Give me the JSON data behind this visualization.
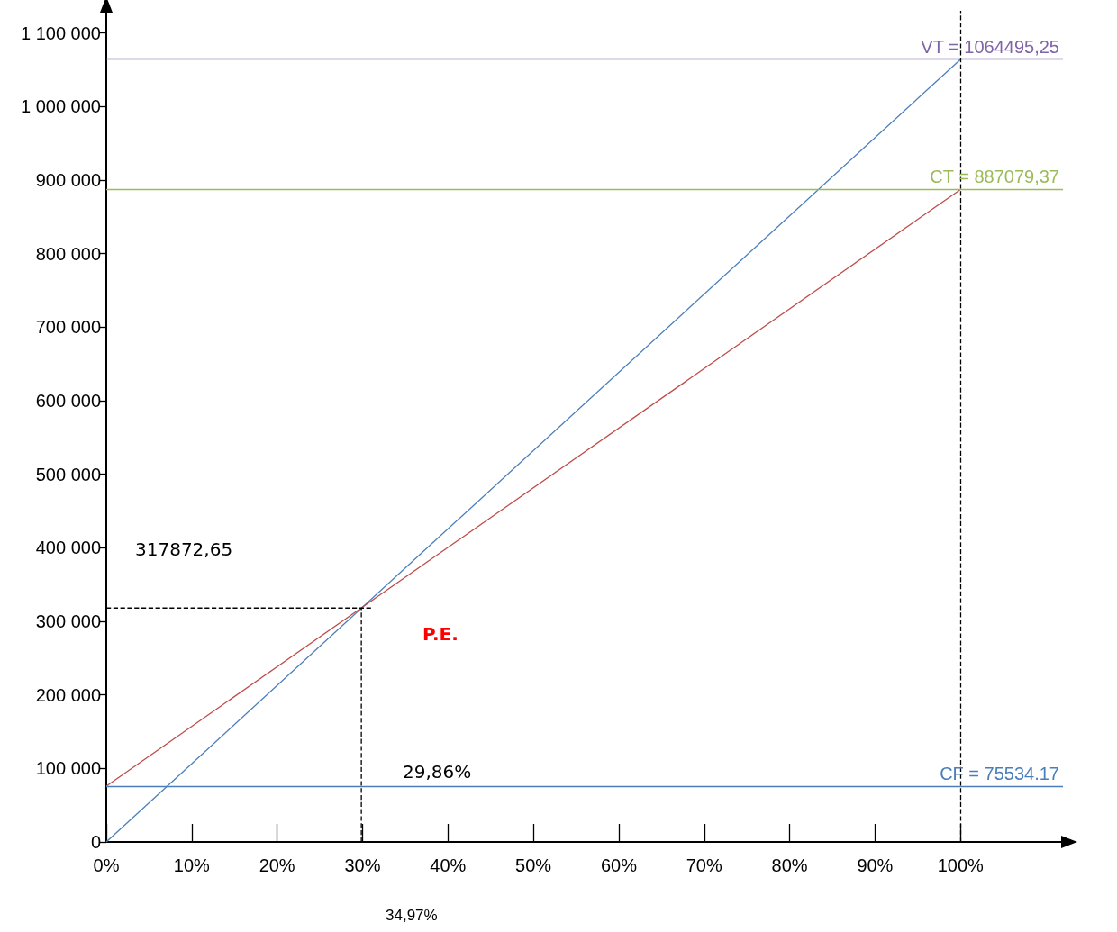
{
  "chart_data": {
    "type": "line",
    "xlim": [
      0,
      112
    ],
    "ylim": [
      0,
      1130000
    ],
    "xticks": [
      {
        "value": 0,
        "label": "0%"
      },
      {
        "value": 10,
        "label": "10%"
      },
      {
        "value": 20,
        "label": "20%"
      },
      {
        "value": 30,
        "label": "30%"
      },
      {
        "value": 40,
        "label": "40%"
      },
      {
        "value": 50,
        "label": "50%"
      },
      {
        "value": 60,
        "label": "60%"
      },
      {
        "value": 70,
        "label": "70%"
      },
      {
        "value": 80,
        "label": "80%"
      },
      {
        "value": 90,
        "label": "90%"
      },
      {
        "value": 100,
        "label": "100%"
      }
    ],
    "yticks": [
      0,
      {
        "value": 100000,
        "label": "100 000"
      },
      {
        "value": 200000,
        "label": "200 000"
      },
      {
        "value": 300000,
        "label": "300 000"
      },
      {
        "value": 400000,
        "label": "400 000"
      },
      {
        "value": 500000,
        "label": "500 000"
      },
      {
        "value": 600000,
        "label": "600 000"
      },
      {
        "value": 700000,
        "label": "700 000"
      },
      {
        "value": 800000,
        "label": "800 000"
      },
      {
        "value": 900000,
        "label": "900 000"
      },
      {
        "value": 1000000,
        "label": "1 000 000"
      },
      {
        "value": 1100000,
        "label": "1 100 000"
      }
    ],
    "series": [
      {
        "color": "#4a7ebb",
        "x": [
          0,
          100
        ],
        "values": [
          0,
          1064000
        ]
      },
      {
        "color": "#be4b48",
        "x": [
          0,
          100
        ],
        "values": [
          76000,
          887000
        ]
      },
      {
        "color": "#000000",
        "x": [
          0,
          31
        ],
        "values": [
          318000,
          318000
        ],
        "line_style": "dashed"
      },
      {
        "color": "#000000",
        "x": [
          29.86,
          29.86
        ],
        "values": [
          0,
          318000
        ],
        "line_style": "dashed"
      }
    ],
    "ref_lines": [
      {
        "axis": "y",
        "value": 1064495.25,
        "label": "VT = 1064495,25",
        "color": "#7f64a8"
      },
      {
        "axis": "y",
        "value": 887079.37,
        "label": "CT = 887079,37",
        "color": "#9bbb59"
      },
      {
        "axis": "y",
        "value": 75534.17,
        "label": "CF = 75534.17",
        "color": "#4a7ebb"
      },
      {
        "axis": "x",
        "value": 100,
        "color": "#000000",
        "line_style": "dashed"
      }
    ],
    "annotations": [
      "317872,65",
      "P.E.",
      "29,86%",
      "34,97%"
    ],
    "marker": "none",
    "line_style": "solid",
    "grid": false
  }
}
